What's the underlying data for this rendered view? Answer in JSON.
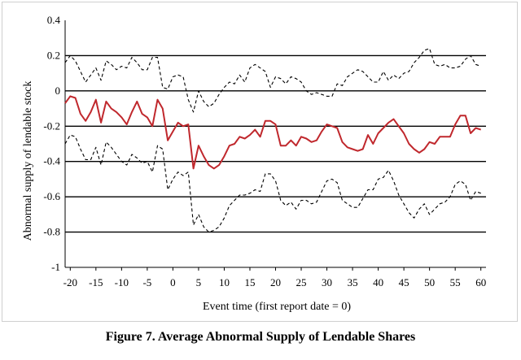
{
  "caption": "Figure 7. Average Abnormal Supply of Lendable Shares",
  "chart_data": {
    "type": "line",
    "title": "",
    "xlabel": "Event time (first report date = 0)",
    "ylabel": "Abnormal supply of lendable stock",
    "xlim": [
      -21,
      61
    ],
    "ylim": [
      -1,
      0.4
    ],
    "x_ticks": [
      -20,
      -15,
      -10,
      -5,
      0,
      5,
      10,
      15,
      20,
      25,
      30,
      35,
      40,
      45,
      50,
      55,
      60
    ],
    "x_tick_labels": [
      "-20",
      "-15",
      "-10",
      "-5",
      "0",
      "5",
      "10",
      "15",
      "20",
      "25",
      "30",
      "35",
      "40",
      "45",
      "50",
      "55",
      "60"
    ],
    "y_ticks": [
      -1,
      -0.8,
      -0.6,
      -0.4,
      -0.2,
      0,
      0.2,
      0.4
    ],
    "y_tick_labels": [
      "-1",
      "-0.8",
      "-0.6",
      "-0.4",
      "-0.2",
      "0",
      "0.2",
      "0.4"
    ],
    "grid": "horizontal",
    "colors": {
      "mean": "#c0282d",
      "band": "#000000",
      "grid": "#000000"
    },
    "x": [
      -21,
      -20,
      -19,
      -18,
      -17,
      -16,
      -15,
      -14,
      -13,
      -12,
      -11,
      -10,
      -9,
      -8,
      -7,
      -6,
      -5,
      -4,
      -3,
      -2,
      -1,
      0,
      1,
      2,
      3,
      4,
      5,
      6,
      7,
      8,
      9,
      10,
      11,
      12,
      13,
      14,
      15,
      16,
      17,
      18,
      19,
      20,
      21,
      22,
      23,
      24,
      25,
      26,
      27,
      28,
      29,
      30,
      31,
      32,
      33,
      34,
      35,
      36,
      37,
      38,
      39,
      40,
      41,
      42,
      43,
      44,
      45,
      46,
      47,
      48,
      49,
      50,
      51,
      52,
      53,
      54,
      55,
      56,
      57,
      58,
      59,
      60
    ],
    "series": [
      {
        "style": "solid",
        "values": [
          -0.07,
          -0.03,
          -0.04,
          -0.13,
          -0.17,
          -0.12,
          -0.05,
          -0.18,
          -0.06,
          -0.1,
          -0.12,
          -0.15,
          -0.19,
          -0.12,
          -0.06,
          -0.13,
          -0.15,
          -0.2,
          -0.05,
          -0.1,
          -0.28,
          -0.23,
          -0.18,
          -0.2,
          -0.19,
          -0.44,
          -0.31,
          -0.37,
          -0.42,
          -0.44,
          -0.42,
          -0.37,
          -0.31,
          -0.3,
          -0.26,
          -0.27,
          -0.25,
          -0.22,
          -0.26,
          -0.17,
          -0.17,
          -0.19,
          -0.31,
          -0.31,
          -0.28,
          -0.31,
          -0.26,
          -0.27,
          -0.29,
          -0.28,
          -0.23,
          -0.19,
          -0.2,
          -0.21,
          -0.29,
          -0.32,
          -0.33,
          -0.34,
          -0.33,
          -0.25,
          -0.3,
          -0.24,
          -0.21,
          -0.18,
          -0.16,
          -0.2,
          -0.24,
          -0.3,
          -0.33,
          -0.35,
          -0.33,
          -0.29,
          -0.3,
          -0.26,
          -0.26,
          -0.26,
          -0.19,
          -0.14,
          -0.14,
          -0.24,
          -0.21,
          -0.22
        ]
      },
      {
        "style": "dashed",
        "values": [
          0.16,
          0.2,
          0.17,
          0.11,
          0.05,
          0.09,
          0.13,
          0.06,
          0.17,
          0.15,
          0.12,
          0.14,
          0.13,
          0.19,
          0.16,
          0.12,
          0.12,
          0.19,
          0.19,
          0.02,
          0.01,
          0.08,
          0.09,
          0.08,
          -0.05,
          -0.12,
          0.0,
          -0.06,
          -0.09,
          -0.07,
          -0.02,
          0.02,
          0.05,
          0.04,
          0.09,
          0.05,
          0.13,
          0.15,
          0.13,
          0.11,
          0.02,
          0.08,
          0.07,
          0.04,
          0.08,
          0.07,
          0.05,
          0.0,
          -0.02,
          -0.01,
          -0.02,
          -0.03,
          -0.03,
          0.04,
          0.03,
          0.08,
          0.1,
          0.12,
          0.11,
          0.08,
          0.05,
          0.05,
          0.11,
          0.06,
          0.09,
          0.07,
          0.1,
          0.11,
          0.16,
          0.19,
          0.23,
          0.24,
          0.15,
          0.14,
          0.15,
          0.13,
          0.13,
          0.14,
          0.18,
          0.2,
          0.15,
          0.14
        ]
      },
      {
        "style": "dashed",
        "values": [
          -0.3,
          -0.25,
          -0.26,
          -0.33,
          -0.39,
          -0.39,
          -0.32,
          -0.42,
          -0.29,
          -0.32,
          -0.36,
          -0.4,
          -0.42,
          -0.36,
          -0.38,
          -0.41,
          -0.4,
          -0.46,
          -0.31,
          -0.33,
          -0.56,
          -0.5,
          -0.46,
          -0.48,
          -0.46,
          -0.76,
          -0.7,
          -0.77,
          -0.8,
          -0.79,
          -0.77,
          -0.72,
          -0.65,
          -0.62,
          -0.59,
          -0.59,
          -0.58,
          -0.56,
          -0.57,
          -0.47,
          -0.47,
          -0.51,
          -0.62,
          -0.65,
          -0.63,
          -0.67,
          -0.62,
          -0.62,
          -0.64,
          -0.63,
          -0.57,
          -0.51,
          -0.5,
          -0.52,
          -0.62,
          -0.64,
          -0.66,
          -0.66,
          -0.61,
          -0.56,
          -0.56,
          -0.5,
          -0.49,
          -0.45,
          -0.51,
          -0.59,
          -0.64,
          -0.69,
          -0.72,
          -0.67,
          -0.64,
          -0.7,
          -0.67,
          -0.64,
          -0.63,
          -0.6,
          -0.53,
          -0.51,
          -0.53,
          -0.62,
          -0.57,
          -0.58
        ]
      }
    ]
  }
}
